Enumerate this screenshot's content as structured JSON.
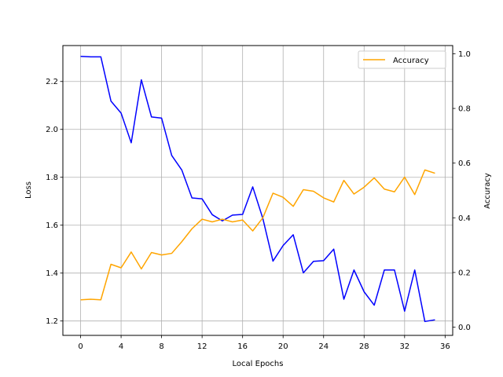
{
  "chart_data": {
    "type": "line",
    "title": "",
    "xlabel": "Local Epochs",
    "ylabel_left": "Loss",
    "ylabel_right": "Accuracy",
    "grid": true,
    "legend": {
      "placement": "top-right",
      "entries": [
        "Accuracy"
      ]
    },
    "colors": {
      "loss": "#0000ff",
      "accuracy": "#ffa500",
      "grid": "#b0b0b0"
    },
    "xlim": [
      -1.75,
      36.75
    ],
    "ylim_left": [
      1.14,
      2.35
    ],
    "ylim_right": [
      -0.03,
      1.03
    ],
    "x_ticks": [
      0,
      4,
      8,
      12,
      16,
      20,
      24,
      28,
      32,
      36
    ],
    "y_ticks_left": [
      1.2,
      1.4,
      1.6,
      1.8,
      2.0,
      2.2
    ],
    "y_ticks_right": [
      0.0,
      0.2,
      0.4,
      0.6,
      0.8,
      1.0
    ],
    "x_tick_labels": [
      "0",
      "4",
      "8",
      "12",
      "16",
      "20",
      "24",
      "28",
      "32",
      "36"
    ],
    "y_tick_labels_left": [
      "1.2",
      "1.4",
      "1.6",
      "1.8",
      "2.0",
      "2.2"
    ],
    "y_tick_labels_right": [
      "0.0",
      "0.2",
      "0.4",
      "0.6",
      "0.8",
      "1.0"
    ],
    "x": [
      0,
      1,
      2,
      3,
      4,
      5,
      6,
      7,
      8,
      9,
      10,
      11,
      12,
      13,
      14,
      15,
      16,
      17,
      18,
      19,
      20,
      21,
      22,
      23,
      24,
      25,
      26,
      27,
      28,
      29,
      30,
      31,
      32,
      33,
      34,
      35
    ],
    "series": [
      {
        "name": "",
        "axis": "left",
        "values": [
          2.305,
          2.303,
          2.303,
          2.118,
          2.068,
          1.944,
          2.207,
          2.052,
          2.047,
          1.891,
          1.83,
          1.714,
          1.71,
          1.644,
          1.618,
          1.642,
          1.645,
          1.76,
          1.628,
          1.45,
          1.515,
          1.56,
          1.401,
          1.449,
          1.452,
          1.5,
          1.291,
          1.413,
          1.322,
          1.266,
          1.413,
          1.413,
          1.241,
          1.413,
          1.198,
          1.205
        ]
      },
      {
        "name": "Accuracy",
        "axis": "right",
        "values": [
          0.1,
          0.102,
          0.1,
          0.23,
          0.217,
          0.275,
          0.213,
          0.273,
          0.264,
          0.27,
          0.313,
          0.36,
          0.395,
          0.385,
          0.395,
          0.385,
          0.392,
          0.352,
          0.4,
          0.49,
          0.475,
          0.442,
          0.503,
          0.497,
          0.473,
          0.458,
          0.537,
          0.487,
          0.512,
          0.546,
          0.505,
          0.495,
          0.549,
          0.485,
          0.575,
          0.563
        ]
      }
    ]
  }
}
